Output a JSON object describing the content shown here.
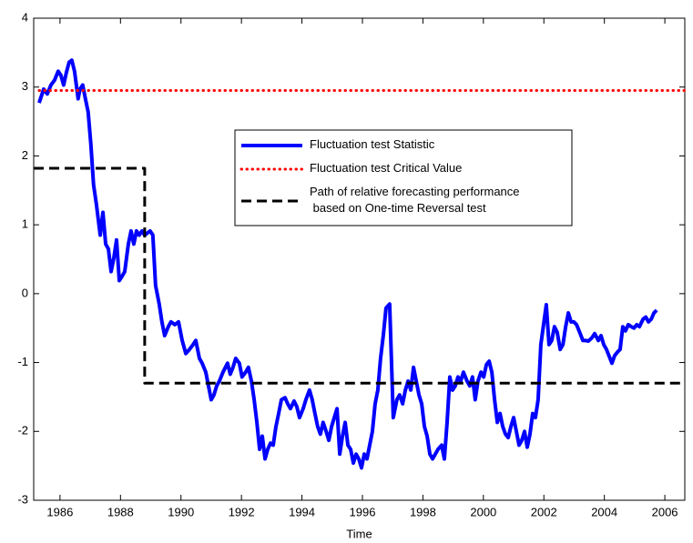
{
  "chart_data": {
    "type": "line",
    "xlabel": "Time",
    "xlim": [
      1985.13,
      2006.66
    ],
    "ylim": [
      -3,
      4
    ],
    "xticks": [
      1986,
      1988,
      1990,
      1992,
      1994,
      1996,
      1998,
      2000,
      2002,
      2004,
      2006
    ],
    "yticks": [
      -3,
      -2,
      -1,
      0,
      1,
      2,
      3,
      4
    ],
    "series": [
      {
        "name": "Fluctuation test Statistic",
        "color": "#0000ff",
        "style": "solid",
        "x": [
          1985.31,
          1985.46,
          1985.58,
          1985.7,
          1985.82,
          1985.94,
          1986.03,
          1986.12,
          1986.21,
          1986.3,
          1986.39,
          1986.48,
          1986.6,
          1986.66,
          1986.75,
          1986.84,
          1986.93,
          1987.02,
          1987.11,
          1987.2,
          1987.33,
          1987.42,
          1987.51,
          1987.6,
          1987.69,
          1987.78,
          1987.87,
          1987.96,
          1988.05,
          1988.14,
          1988.26,
          1988.35,
          1988.44,
          1988.53,
          1988.62,
          1988.71,
          1988.8,
          1988.98,
          1989.07,
          1989.16,
          1989.28,
          1989.37,
          1989.46,
          1989.58,
          1989.67,
          1989.8,
          1989.92,
          1990.04,
          1990.16,
          1990.28,
          1990.4,
          1990.49,
          1990.61,
          1990.7,
          1990.82,
          1990.91,
          1991.0,
          1991.09,
          1991.18,
          1991.27,
          1991.39,
          1991.54,
          1991.63,
          1991.72,
          1991.81,
          1991.93,
          1992.02,
          1992.14,
          1992.23,
          1992.33,
          1992.42,
          1992.51,
          1992.6,
          1992.69,
          1992.78,
          1992.87,
          1992.96,
          1993.05,
          1993.14,
          1993.23,
          1993.32,
          1993.44,
          1993.53,
          1993.62,
          1993.74,
          1993.83,
          1993.92,
          1994.04,
          1994.13,
          1994.25,
          1994.34,
          1994.43,
          1994.52,
          1994.61,
          1994.7,
          1994.8,
          1994.89,
          1994.98,
          1995.07,
          1995.16,
          1995.25,
          1995.34,
          1995.43,
          1995.52,
          1995.61,
          1995.7,
          1995.79,
          1995.88,
          1995.97,
          1996.06,
          1996.15,
          1996.24,
          1996.33,
          1996.42,
          1996.51,
          1996.6,
          1996.69,
          1996.78,
          1996.9,
          1997.02,
          1997.14,
          1997.23,
          1997.33,
          1997.42,
          1997.51,
          1997.6,
          1997.69,
          1997.78,
          1997.87,
          1997.96,
          1998.05,
          1998.14,
          1998.23,
          1998.32,
          1998.41,
          1998.5,
          1998.62,
          1998.71,
          1998.8,
          1998.89,
          1998.98,
          1999.07,
          1999.16,
          1999.25,
          1999.34,
          1999.46,
          1999.55,
          1999.64,
          1999.73,
          1999.82,
          1999.92,
          2000.01,
          2000.1,
          2000.19,
          2000.28,
          2000.37,
          2000.46,
          2000.55,
          2000.64,
          2000.73,
          2000.82,
          2000.91,
          2001.0,
          2001.09,
          2001.18,
          2001.27,
          2001.36,
          2001.45,
          2001.54,
          2001.63,
          2001.72,
          2001.81,
          2001.9,
          2001.99,
          2002.08,
          2002.17,
          2002.26,
          2002.35,
          2002.44,
          2002.54,
          2002.63,
          2002.72,
          2002.81,
          2002.9,
          2002.99,
          2003.08,
          2003.2,
          2003.29,
          2003.38,
          2003.47,
          2003.59,
          2003.68,
          2003.8,
          2003.89,
          2003.98,
          2004.07,
          2004.25,
          2004.34,
          2004.43,
          2004.52,
          2004.61,
          2004.7,
          2004.79,
          2004.89,
          2004.98,
          2005.07,
          2005.16,
          2005.28,
          2005.37,
          2005.46,
          2005.55,
          2005.64,
          2005.73
        ],
        "values": [
          2.77,
          2.97,
          2.9,
          3.03,
          3.1,
          3.23,
          3.17,
          3.03,
          3.21,
          3.36,
          3.39,
          3.23,
          2.83,
          2.97,
          3.03,
          2.83,
          2.64,
          2.17,
          1.58,
          1.31,
          0.85,
          1.18,
          0.72,
          0.65,
          0.32,
          0.52,
          0.78,
          0.19,
          0.25,
          0.32,
          0.72,
          0.91,
          0.72,
          0.91,
          0.85,
          0.91,
          0.85,
          0.91,
          0.85,
          0.12,
          -0.15,
          -0.41,
          -0.61,
          -0.48,
          -0.41,
          -0.45,
          -0.41,
          -0.68,
          -0.87,
          -0.81,
          -0.74,
          -0.68,
          -0.94,
          -1.01,
          -1.14,
          -1.34,
          -1.54,
          -1.47,
          -1.34,
          -1.27,
          -1.14,
          -1.01,
          -1.17,
          -1.07,
          -0.94,
          -1.01,
          -1.21,
          -1.14,
          -1.07,
          -1.27,
          -1.54,
          -1.87,
          -2.26,
          -2.07,
          -2.4,
          -2.26,
          -2.17,
          -2.2,
          -1.93,
          -1.74,
          -1.54,
          -1.51,
          -1.6,
          -1.67,
          -1.56,
          -1.64,
          -1.8,
          -1.67,
          -1.54,
          -1.4,
          -1.54,
          -1.74,
          -1.93,
          -2.04,
          -1.87,
          -2.0,
          -2.13,
          -1.93,
          -1.8,
          -1.67,
          -2.33,
          -2.07,
          -1.87,
          -2.2,
          -2.26,
          -2.46,
          -2.33,
          -2.4,
          -2.53,
          -2.33,
          -2.4,
          -2.2,
          -2.0,
          -1.6,
          -1.4,
          -0.94,
          -0.61,
          -0.21,
          -0.15,
          -1.8,
          -1.54,
          -1.47,
          -1.6,
          -1.4,
          -1.27,
          -1.4,
          -1.07,
          -1.27,
          -1.47,
          -1.6,
          -1.93,
          -2.07,
          -2.33,
          -2.4,
          -2.33,
          -2.26,
          -2.2,
          -2.4,
          -1.87,
          -1.21,
          -1.4,
          -1.34,
          -1.21,
          -1.27,
          -1.14,
          -1.27,
          -1.34,
          -1.21,
          -1.54,
          -1.27,
          -1.14,
          -1.21,
          -1.03,
          -0.98,
          -1.14,
          -1.54,
          -1.87,
          -1.74,
          -1.93,
          -2.04,
          -2.09,
          -1.93,
          -1.8,
          -2.0,
          -2.2,
          -2.13,
          -2.0,
          -2.23,
          -2.04,
          -1.74,
          -1.8,
          -1.54,
          -0.74,
          -0.45,
          -0.16,
          -0.74,
          -0.68,
          -0.48,
          -0.56,
          -0.81,
          -0.74,
          -0.48,
          -0.28,
          -0.41,
          -0.41,
          -0.45,
          -0.58,
          -0.68,
          -0.68,
          -0.69,
          -0.64,
          -0.58,
          -0.68,
          -0.61,
          -0.74,
          -0.81,
          -1.01,
          -0.9,
          -0.85,
          -0.81,
          -0.48,
          -0.54,
          -0.45,
          -0.48,
          -0.5,
          -0.45,
          -0.48,
          -0.37,
          -0.34,
          -0.41,
          -0.37,
          -0.28,
          -0.24
        ]
      },
      {
        "name": "Fluctuation test Critical Value",
        "color": "#ff0000",
        "style": "dotted",
        "x": [
          1985.31,
          2006.66
        ],
        "values": [
          2.95,
          2.95
        ]
      },
      {
        "name": "Path of relative forecasting performance\n based on One-time Reversal test",
        "color": "#000000",
        "style": "dashed",
        "x": [
          1985.13,
          1988.8,
          1988.8,
          2006.66
        ],
        "values": [
          1.82,
          1.82,
          -1.3,
          -1.3
        ]
      }
    ]
  }
}
